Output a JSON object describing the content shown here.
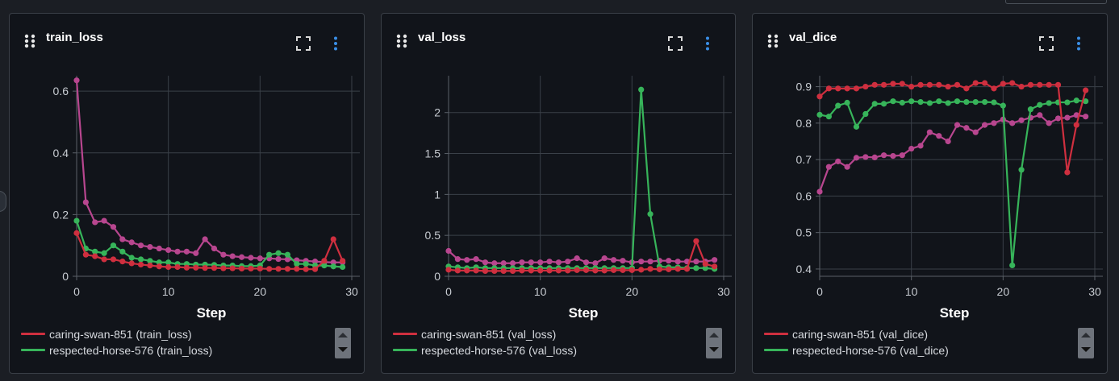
{
  "colors": {
    "caring_swan": "#cf2f3f",
    "respected_horse": "#37b45a",
    "third_run": "#b8468f",
    "icon_accent": "#3a8ee6"
  },
  "icons": {
    "drag": "drag-handle-icon",
    "expand": "expand-icon",
    "menu": "more-vertical-icon"
  },
  "chart_data": [
    {
      "type": "line",
      "title": "train_loss",
      "xlabel": "Step",
      "xlim": [
        0,
        30
      ],
      "ylim": [
        0,
        0.65
      ],
      "x_ticks": [
        0,
        10,
        20,
        30
      ],
      "x_tick_labels": [
        "0",
        "10",
        "20",
        "30"
      ],
      "y_ticks": [
        0,
        0.2,
        0.4,
        0.6
      ],
      "y_tick_labels": [
        "0",
        "0.2",
        "0.4",
        "0.6"
      ],
      "grid": true,
      "legend": [
        {
          "label": "caring-swan-851 (train_loss)",
          "color": "#cf2f3f"
        },
        {
          "label": "respected-horse-576 (train_loss)",
          "color": "#37b45a"
        }
      ],
      "series": [
        {
          "color": "#cf2f3f",
          "x": [
            0,
            1,
            2,
            3,
            4,
            5,
            6,
            7,
            8,
            9,
            10,
            11,
            12,
            13,
            14,
            15,
            16,
            17,
            18,
            19,
            20,
            21,
            22,
            23,
            24,
            25,
            26,
            27,
            28,
            29
          ],
          "values": [
            0.14,
            0.07,
            0.065,
            0.055,
            0.055,
            0.048,
            0.042,
            0.038,
            0.035,
            0.032,
            0.03,
            0.03,
            0.028,
            0.028,
            0.027,
            0.027,
            0.026,
            0.026,
            0.025,
            0.025,
            0.025,
            0.024,
            0.024,
            0.024,
            0.024,
            0.023,
            0.023,
            0.05,
            0.12,
            0.05
          ]
        },
        {
          "color": "#37b45a",
          "x": [
            0,
            1,
            2,
            3,
            4,
            5,
            6,
            7,
            8,
            9,
            10,
            11,
            12,
            13,
            14,
            15,
            16,
            17,
            18,
            19,
            20,
            21,
            22,
            23,
            24,
            25,
            26,
            27,
            28,
            29
          ],
          "values": [
            0.18,
            0.09,
            0.08,
            0.075,
            0.1,
            0.08,
            0.06,
            0.055,
            0.05,
            0.045,
            0.045,
            0.04,
            0.04,
            0.038,
            0.038,
            0.037,
            0.035,
            0.035,
            0.033,
            0.033,
            0.035,
            0.07,
            0.075,
            0.07,
            0.04,
            0.04,
            0.035,
            0.035,
            0.032,
            0.03
          ]
        },
        {
          "color": "#b8468f",
          "x": [
            0,
            1,
            2,
            3,
            4,
            5,
            6,
            7,
            8,
            9,
            10,
            11,
            12,
            13,
            14,
            15,
            16,
            17,
            18,
            19,
            20,
            21,
            22,
            23,
            24,
            25,
            26,
            27,
            28,
            29
          ],
          "values": [
            0.635,
            0.24,
            0.175,
            0.18,
            0.16,
            0.12,
            0.11,
            0.1,
            0.095,
            0.09,
            0.085,
            0.08,
            0.08,
            0.075,
            0.12,
            0.09,
            0.07,
            0.065,
            0.062,
            0.06,
            0.058,
            0.058,
            0.056,
            0.055,
            0.052,
            0.05,
            0.048,
            0.046,
            0.045,
            0.045
          ]
        }
      ]
    },
    {
      "type": "line",
      "title": "val_loss",
      "xlabel": "Step",
      "xlim": [
        0,
        30
      ],
      "ylim": [
        0,
        2.45
      ],
      "x_ticks": [
        0,
        10,
        20,
        30
      ],
      "x_tick_labels": [
        "0",
        "10",
        "20",
        "30"
      ],
      "y_ticks": [
        0,
        0.5,
        1,
        1.5,
        2
      ],
      "y_tick_labels": [
        "0",
        "0.5",
        "1",
        "1.5",
        "2"
      ],
      "grid": true,
      "legend": [
        {
          "label": "caring-swan-851 (val_loss)",
          "color": "#cf2f3f"
        },
        {
          "label": "respected-horse-576 (val_loss)",
          "color": "#37b45a"
        }
      ],
      "series": [
        {
          "color": "#cf2f3f",
          "x": [
            0,
            1,
            2,
            3,
            4,
            5,
            6,
            7,
            8,
            9,
            10,
            11,
            12,
            13,
            14,
            15,
            16,
            17,
            18,
            19,
            20,
            21,
            22,
            23,
            24,
            25,
            26,
            27,
            28,
            29
          ],
          "values": [
            0.08,
            0.07,
            0.07,
            0.07,
            0.065,
            0.065,
            0.065,
            0.065,
            0.07,
            0.07,
            0.07,
            0.07,
            0.07,
            0.07,
            0.075,
            0.075,
            0.07,
            0.07,
            0.075,
            0.075,
            0.075,
            0.08,
            0.09,
            0.085,
            0.085,
            0.09,
            0.09,
            0.43,
            0.15,
            0.12
          ]
        },
        {
          "color": "#37b45a",
          "x": [
            0,
            1,
            2,
            3,
            4,
            5,
            6,
            7,
            8,
            9,
            10,
            11,
            12,
            13,
            14,
            15,
            16,
            17,
            18,
            19,
            20,
            21,
            22,
            23,
            24,
            25,
            26,
            27,
            28,
            29
          ],
          "values": [
            0.12,
            0.11,
            0.1,
            0.11,
            0.1,
            0.1,
            0.1,
            0.1,
            0.1,
            0.1,
            0.1,
            0.1,
            0.1,
            0.1,
            0.1,
            0.1,
            0.1,
            0.1,
            0.1,
            0.1,
            0.1,
            2.28,
            0.76,
            0.12,
            0.11,
            0.11,
            0.1,
            0.1,
            0.1,
            0.09
          ]
        },
        {
          "color": "#b8468f",
          "x": [
            0,
            1,
            2,
            3,
            4,
            5,
            6,
            7,
            8,
            9,
            10,
            11,
            12,
            13,
            14,
            15,
            16,
            17,
            18,
            19,
            20,
            21,
            22,
            23,
            24,
            25,
            26,
            27,
            28,
            29
          ],
          "values": [
            0.31,
            0.21,
            0.2,
            0.21,
            0.17,
            0.16,
            0.16,
            0.16,
            0.17,
            0.17,
            0.17,
            0.18,
            0.17,
            0.18,
            0.22,
            0.17,
            0.16,
            0.22,
            0.2,
            0.19,
            0.17,
            0.18,
            0.18,
            0.19,
            0.19,
            0.18,
            0.18,
            0.18,
            0.18,
            0.2
          ]
        }
      ]
    },
    {
      "type": "line",
      "title": "val_dice",
      "xlabel": "Step",
      "xlim": [
        0,
        30
      ],
      "ylim": [
        0.38,
        0.93
      ],
      "x_ticks": [
        0,
        10,
        20,
        30
      ],
      "x_tick_labels": [
        "0",
        "10",
        "20",
        "30"
      ],
      "y_ticks": [
        0.4,
        0.5,
        0.6,
        0.7,
        0.8,
        0.9
      ],
      "y_tick_labels": [
        "0.4",
        "0.5",
        "0.6",
        "0.7",
        "0.8",
        "0.9"
      ],
      "grid": true,
      "legend": [
        {
          "label": "caring-swan-851 (val_dice)",
          "color": "#cf2f3f"
        },
        {
          "label": "respected-horse-576 (val_dice)",
          "color": "#37b45a"
        }
      ],
      "series": [
        {
          "color": "#cf2f3f",
          "x": [
            0,
            1,
            2,
            3,
            4,
            5,
            6,
            7,
            8,
            9,
            10,
            11,
            12,
            13,
            14,
            15,
            16,
            17,
            18,
            19,
            20,
            21,
            22,
            23,
            24,
            25,
            26,
            27,
            28,
            29
          ],
          "values": [
            0.873,
            0.895,
            0.895,
            0.895,
            0.895,
            0.9,
            0.905,
            0.905,
            0.908,
            0.908,
            0.9,
            0.905,
            0.905,
            0.905,
            0.9,
            0.905,
            0.895,
            0.91,
            0.91,
            0.895,
            0.908,
            0.91,
            0.9,
            0.905,
            0.905,
            0.905,
            0.905,
            0.665,
            0.795,
            0.89
          ]
        },
        {
          "color": "#37b45a",
          "x": [
            0,
            1,
            2,
            3,
            4,
            5,
            6,
            7,
            8,
            9,
            10,
            11,
            12,
            13,
            14,
            15,
            16,
            17,
            18,
            19,
            20,
            21,
            22,
            23,
            24,
            25,
            26,
            27,
            28,
            29
          ],
          "values": [
            0.823,
            0.818,
            0.848,
            0.856,
            0.79,
            0.825,
            0.853,
            0.853,
            0.86,
            0.856,
            0.86,
            0.858,
            0.855,
            0.86,
            0.855,
            0.86,
            0.858,
            0.858,
            0.858,
            0.857,
            0.848,
            0.41,
            0.672,
            0.838,
            0.85,
            0.855,
            0.857,
            0.857,
            0.862,
            0.86
          ]
        },
        {
          "color": "#b8468f",
          "x": [
            0,
            1,
            2,
            3,
            4,
            5,
            6,
            7,
            8,
            9,
            10,
            11,
            12,
            13,
            14,
            15,
            16,
            17,
            18,
            19,
            20,
            21,
            22,
            23,
            24,
            25,
            26,
            27,
            28,
            29
          ],
          "values": [
            0.612,
            0.68,
            0.695,
            0.68,
            0.705,
            0.707,
            0.706,
            0.712,
            0.71,
            0.712,
            0.73,
            0.738,
            0.775,
            0.765,
            0.75,
            0.795,
            0.787,
            0.775,
            0.795,
            0.8,
            0.81,
            0.8,
            0.808,
            0.815,
            0.822,
            0.8,
            0.813,
            0.815,
            0.822,
            0.818
          ]
        }
      ]
    }
  ]
}
